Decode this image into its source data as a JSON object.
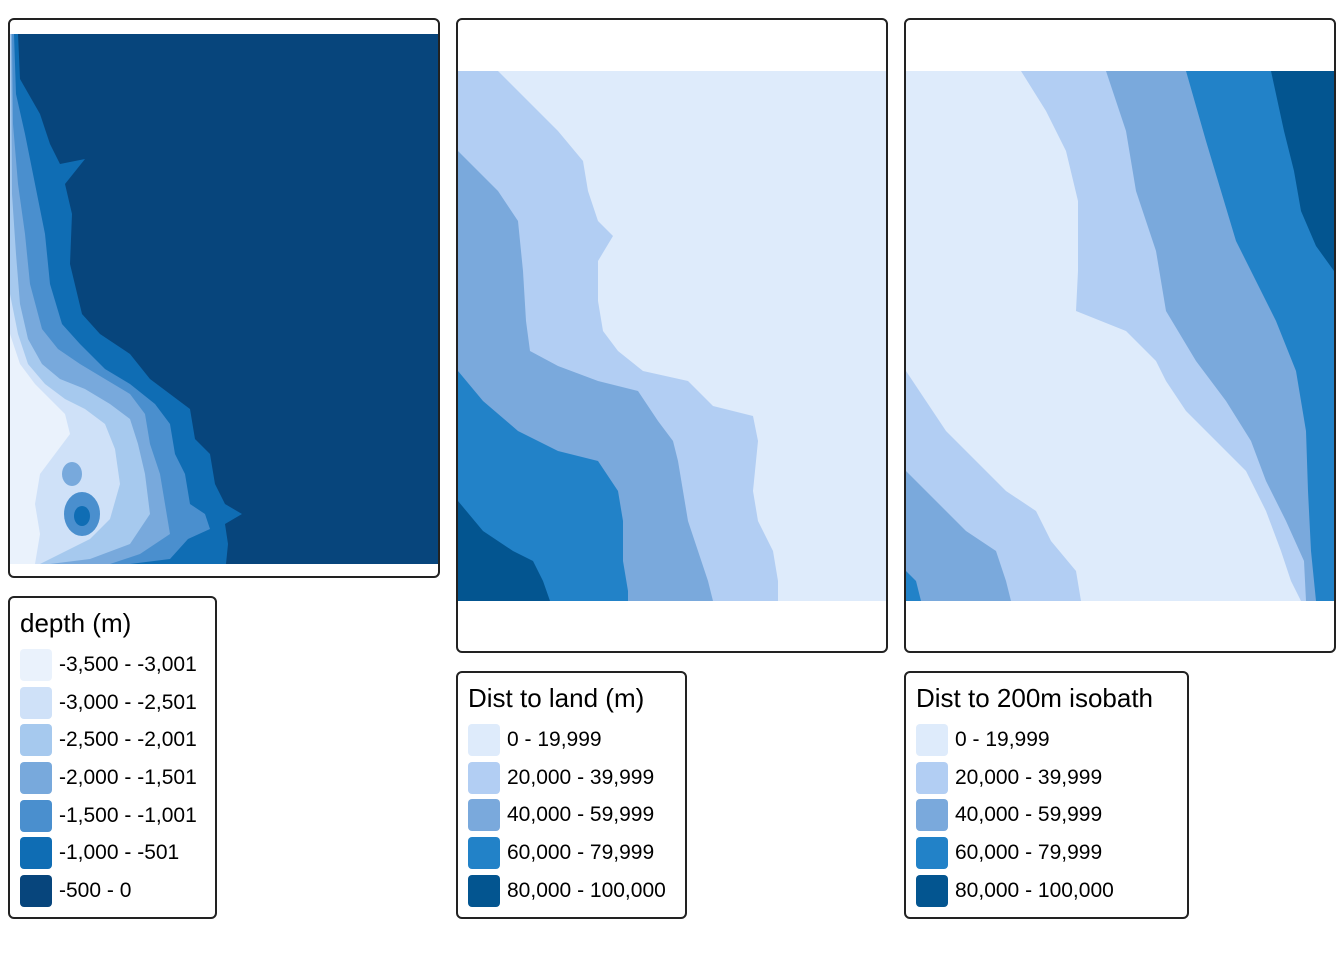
{
  "panels": [
    {
      "id": "depth",
      "legend_title": "depth (m)",
      "classes": [
        {
          "label": "-3,500 - -3,001",
          "color": "#eaf2fc"
        },
        {
          "label": "-3,000 - -2,501",
          "color": "#cfe1f8"
        },
        {
          "label": "-2,500 - -2,001",
          "color": "#a6c9ee"
        },
        {
          "label": "-2,000 - -1,501",
          "color": "#78a9dc"
        },
        {
          "label": "-1,500 - -1,001",
          "color": "#4a8fce"
        },
        {
          "label": "-1,000 - -501",
          "color": "#0f6db4"
        },
        {
          "label": "-500 - 0",
          "color": "#07457c"
        }
      ]
    },
    {
      "id": "dist-land",
      "legend_title": "Dist to land (m)",
      "classes": [
        {
          "label": "0 - 19,999",
          "color": "#deebfb"
        },
        {
          "label": "20,000 - 39,999",
          "color": "#b2cef3"
        },
        {
          "label": "40,000 - 59,999",
          "color": "#7aa9dc"
        },
        {
          "label": "60,000 - 79,999",
          "color": "#2282c8"
        },
        {
          "label": "80,000 - 100,000",
          "color": "#035590"
        }
      ]
    },
    {
      "id": "dist-isobath",
      "legend_title": "Dist to 200m isobath",
      "classes": [
        {
          "label": "0 - 19,999",
          "color": "#deebfb"
        },
        {
          "label": "20,000 - 39,999",
          "color": "#b2cef3"
        },
        {
          "label": "40,000 - 59,999",
          "color": "#7aa9dc"
        },
        {
          "label": "60,000 - 79,999",
          "color": "#2282c8"
        },
        {
          "label": "80,000 - 100,000",
          "color": "#035590"
        }
      ]
    }
  ]
}
